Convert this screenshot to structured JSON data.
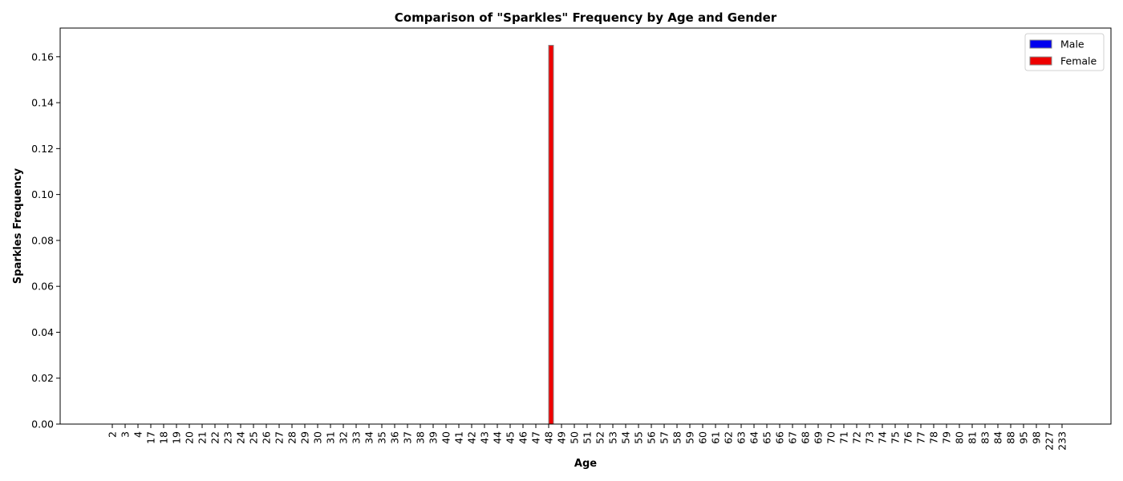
{
  "chart_data": {
    "type": "bar",
    "title": "Comparison of \"Sparkles\" Frequency by Age and Gender",
    "xlabel": "Age",
    "ylabel": "Sparkles Frequency",
    "ylim": [
      0,
      0.1725
    ],
    "yticks": [
      "0.00",
      "0.02",
      "0.04",
      "0.06",
      "0.08",
      "0.10",
      "0.12",
      "0.14",
      "0.16"
    ],
    "grid": false,
    "legend_position": "top-right",
    "categories": [
      "2",
      "3",
      "4",
      "17",
      "18",
      "19",
      "20",
      "21",
      "22",
      "23",
      "24",
      "25",
      "26",
      "27",
      "28",
      "29",
      "30",
      "31",
      "32",
      "33",
      "34",
      "35",
      "36",
      "37",
      "38",
      "39",
      "40",
      "41",
      "42",
      "43",
      "44",
      "45",
      "46",
      "47",
      "48",
      "49",
      "50",
      "51",
      "52",
      "53",
      "54",
      "55",
      "56",
      "57",
      "58",
      "59",
      "60",
      "61",
      "62",
      "63",
      "64",
      "65",
      "66",
      "67",
      "68",
      "69",
      "70",
      "71",
      "72",
      "73",
      "74",
      "75",
      "76",
      "77",
      "78",
      "79",
      "80",
      "81",
      "83",
      "84",
      "88",
      "95",
      "98",
      "227",
      "233"
    ],
    "series": [
      {
        "name": "Male",
        "color": "#0000ee",
        "values": [
          0,
          0,
          0,
          0,
          0,
          0,
          0,
          0,
          0,
          0,
          0,
          0,
          0,
          0,
          0,
          0,
          0,
          0,
          0,
          0,
          0,
          0,
          0,
          0,
          0,
          0,
          0,
          0,
          0,
          0,
          0,
          0,
          0,
          0,
          0,
          0,
          0,
          0,
          0,
          0,
          0,
          0,
          0,
          0,
          0,
          0,
          0,
          0,
          0,
          0,
          0,
          0,
          0,
          0,
          0,
          0,
          0,
          0,
          0,
          0,
          0,
          0,
          0,
          0,
          0,
          0,
          0,
          0,
          0,
          0,
          0,
          0,
          0,
          0,
          0
        ]
      },
      {
        "name": "Female",
        "color": "#ee0000",
        "values": [
          0,
          0,
          0,
          0,
          0,
          0,
          0,
          0,
          0,
          0,
          0,
          0,
          0,
          0,
          0,
          0,
          0,
          0,
          0,
          0,
          0,
          0,
          0,
          0,
          0,
          0,
          0,
          0,
          0,
          0,
          0,
          0,
          0,
          0,
          0.165,
          0,
          0,
          0,
          0,
          0,
          0,
          0,
          0,
          0,
          0,
          0,
          0,
          0,
          0,
          0,
          0,
          0,
          0,
          0,
          0,
          0,
          0,
          0,
          0,
          0,
          0,
          0,
          0,
          0,
          0,
          0,
          0,
          0,
          0,
          0,
          0,
          0,
          0,
          0,
          0
        ]
      }
    ]
  }
}
